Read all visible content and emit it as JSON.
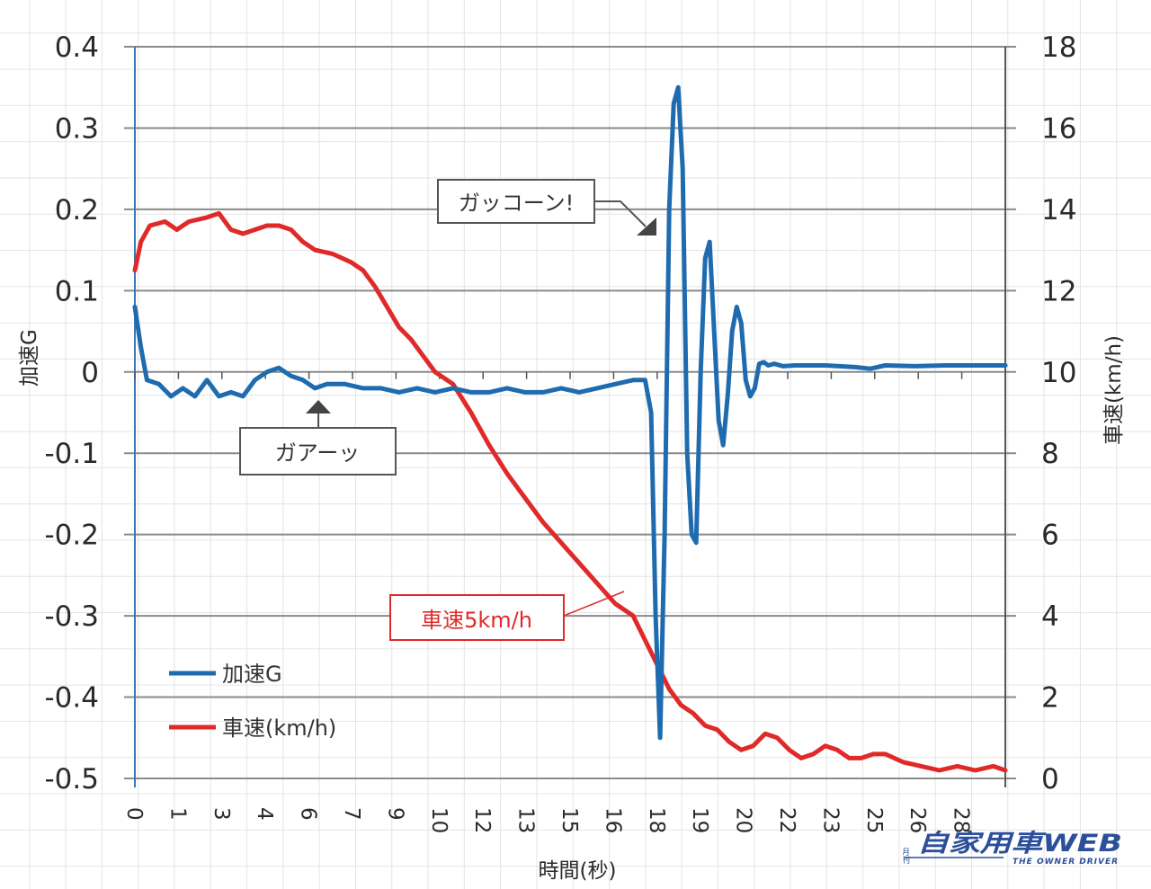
{
  "chart_data": {
    "type": "line",
    "title": "",
    "xlabel": "時間(秒)",
    "ylabel": "加速G",
    "y2label": "車速(km/h)",
    "x_tick_labels": [
      "0",
      "1",
      "3",
      "4",
      "6",
      "7",
      "9",
      "10",
      "12",
      "13",
      "15",
      "16",
      "18",
      "19",
      "20",
      "22",
      "23",
      "25",
      "26",
      "28"
    ],
    "xlim": [
      0,
      29
    ],
    "ylim": [
      -0.5,
      0.4
    ],
    "y_ticks": [
      "0.4",
      "0.3",
      "0.2",
      "0.1",
      "0",
      "-0.1",
      "-0.2",
      "-0.3",
      "-0.4",
      "-0.5"
    ],
    "y2lim": [
      0,
      18
    ],
    "y2_ticks": [
      "18",
      "16",
      "14",
      "12",
      "10",
      "8",
      "6",
      "4",
      "2",
      "0"
    ],
    "grid": "horizontal major gridlines",
    "legend_position": "lower-left inside plot",
    "series": [
      {
        "name": "加速G",
        "axis": "left",
        "color": "#1f6bb0",
        "x": [
          0,
          0.2,
          0.4,
          0.8,
          1.2,
          1.6,
          2.0,
          2.4,
          2.8,
          3.2,
          3.6,
          4.0,
          4.4,
          4.8,
          5.2,
          5.6,
          6.0,
          6.4,
          7.0,
          7.6,
          8.2,
          8.8,
          9.4,
          10.0,
          10.6,
          11.2,
          11.8,
          12.4,
          13.0,
          13.6,
          14.2,
          14.8,
          15.4,
          16.0,
          16.6,
          17.0,
          17.2,
          17.35,
          17.5,
          17.65,
          17.8,
          17.95,
          18.1,
          18.25,
          18.4,
          18.55,
          18.7,
          18.85,
          19.0,
          19.15,
          19.3,
          19.45,
          19.6,
          19.75,
          19.9,
          20.05,
          20.2,
          20.35,
          20.5,
          20.65,
          20.8,
          20.95,
          21.1,
          21.3,
          21.6,
          22.0,
          23.0,
          24.0,
          24.5,
          25.0,
          26.0,
          27.0,
          28.0,
          29.0
        ],
        "values": [
          0.08,
          0.03,
          -0.01,
          -0.015,
          -0.03,
          -0.02,
          -0.03,
          -0.01,
          -0.03,
          -0.025,
          -0.03,
          -0.01,
          0.0,
          0.005,
          -0.005,
          -0.01,
          -0.02,
          -0.015,
          -0.015,
          -0.02,
          -0.02,
          -0.025,
          -0.02,
          -0.025,
          -0.02,
          -0.025,
          -0.025,
          -0.02,
          -0.025,
          -0.025,
          -0.02,
          -0.025,
          -0.02,
          -0.015,
          -0.01,
          -0.01,
          -0.05,
          -0.3,
          -0.45,
          -0.2,
          0.2,
          0.33,
          0.35,
          0.25,
          -0.1,
          -0.2,
          -0.21,
          0.0,
          0.14,
          0.16,
          0.05,
          -0.06,
          -0.09,
          -0.03,
          0.05,
          0.08,
          0.06,
          -0.01,
          -0.03,
          -0.02,
          0.01,
          0.012,
          0.008,
          0.01,
          0.007,
          0.008,
          0.008,
          0.006,
          0.004,
          0.008,
          0.007,
          0.008,
          0.008,
          0.008
        ]
      },
      {
        "name": "車速(km/h)",
        "axis": "right",
        "color": "#e02a2a",
        "x": [
          0,
          0.2,
          0.5,
          1.0,
          1.4,
          1.8,
          2.4,
          2.8,
          3.2,
          3.6,
          4.0,
          4.4,
          4.8,
          5.2,
          5.6,
          6.0,
          6.6,
          7.2,
          7.6,
          8.0,
          8.4,
          8.8,
          9.2,
          9.6,
          10.0,
          10.6,
          11.2,
          11.8,
          12.4,
          13.0,
          13.6,
          14.2,
          14.8,
          15.4,
          16.0,
          16.6,
          17.0,
          17.4,
          17.8,
          18.2,
          18.6,
          19.0,
          19.4,
          19.8,
          20.2,
          20.6,
          21.0,
          21.4,
          21.8,
          22.2,
          22.6,
          23.0,
          23.4,
          23.8,
          24.2,
          24.6,
          25.0,
          25.6,
          26.2,
          26.8,
          27.4,
          28.0,
          28.6,
          29.0
        ],
        "values": [
          12.5,
          13.2,
          13.6,
          13.7,
          13.5,
          13.7,
          13.8,
          13.9,
          13.5,
          13.4,
          13.5,
          13.6,
          13.6,
          13.5,
          13.2,
          13.0,
          12.9,
          12.7,
          12.5,
          12.1,
          11.6,
          11.1,
          10.8,
          10.4,
          10.0,
          9.7,
          9.0,
          8.2,
          7.5,
          6.9,
          6.3,
          5.8,
          5.3,
          4.8,
          4.3,
          4.0,
          3.4,
          2.8,
          2.2,
          1.8,
          1.6,
          1.3,
          1.2,
          0.9,
          0.7,
          0.8,
          1.1,
          1.0,
          0.7,
          0.5,
          0.6,
          0.8,
          0.7,
          0.5,
          0.5,
          0.6,
          0.6,
          0.4,
          0.3,
          0.2,
          0.3,
          0.2,
          0.3,
          0.2
        ]
      }
    ],
    "annotations": [
      {
        "text": "ガッコーン!",
        "target": "加速G spike at ~18 s"
      },
      {
        "text": "ガアーッ",
        "target": "加速G plateau around 6 s"
      },
      {
        "text": "車速5km/h",
        "target": "車速 curve near 16.5 s"
      }
    ]
  },
  "labels": {
    "y_axis_title": "加速G",
    "y2_axis_title": "車速(km/h)",
    "x_axis_title": "時間(秒)",
    "legend_g": "加速G",
    "legend_speed": "車速(km/h)",
    "callout_gakkon": "ガッコーン!",
    "callout_gaaa": "ガアーッ",
    "callout_speed": "車速5km/h"
  },
  "colors": {
    "accel": "#1f6bb0",
    "speed": "#e02a2a",
    "grid": "#8a8a8a",
    "callout_border": "#555555",
    "speed_callout": "#e02a2a",
    "logo": "#2c4f9a"
  },
  "logo": {
    "main": "自家用車WEB",
    "prefix": "月刊",
    "sub": "THE OWNER DRIVER"
  }
}
